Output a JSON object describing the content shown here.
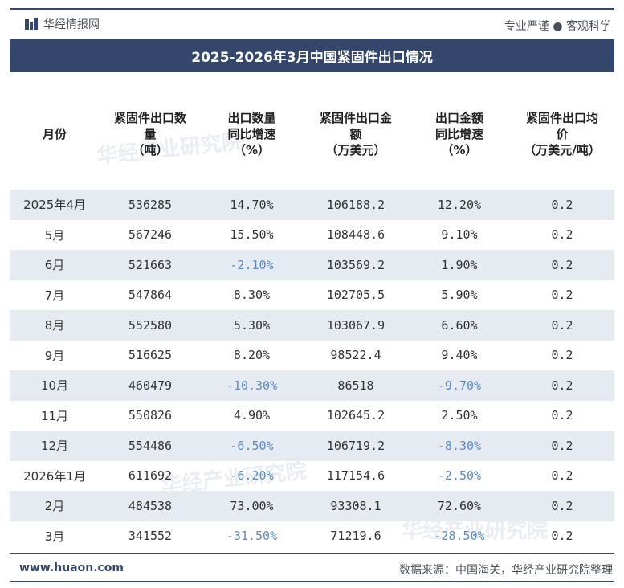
{
  "header": {
    "logo_text": "华经情报网",
    "tagline": "专业严谨 ● 客观科学",
    "brand_color": "#34466b"
  },
  "chart_data": {
    "type": "table",
    "title": "2025-2026年3月中国紧固件出口情况",
    "columns": [
      "月份",
      "紧固件出口数量（吨）",
      "出口数量同比增速（%）",
      "紧固件出口金额（万美元）",
      "出口金额同比增速（%）",
      "紧固件出口均价（万美元/吨）"
    ],
    "rows": [
      {
        "month": "2025年4月",
        "qty": "536285",
        "qty_yoy": "14.70%",
        "amount": "106188.2",
        "amount_yoy": "12.20%",
        "price": "0.2"
      },
      {
        "month": "5月",
        "qty": "567246",
        "qty_yoy": "15.50%",
        "amount": "108448.6",
        "amount_yoy": "9.10%",
        "price": "0.2"
      },
      {
        "month": "6月",
        "qty": "521663",
        "qty_yoy": "-2.10%",
        "amount": "103569.2",
        "amount_yoy": "1.90%",
        "price": "0.2"
      },
      {
        "month": "7月",
        "qty": "547864",
        "qty_yoy": "8.30%",
        "amount": "102705.5",
        "amount_yoy": "5.90%",
        "price": "0.2"
      },
      {
        "month": "8月",
        "qty": "552580",
        "qty_yoy": "5.30%",
        "amount": "103067.9",
        "amount_yoy": "6.60%",
        "price": "0.2"
      },
      {
        "month": "9月",
        "qty": "516625",
        "qty_yoy": "8.20%",
        "amount": "98522.4",
        "amount_yoy": "9.40%",
        "price": "0.2"
      },
      {
        "month": "10月",
        "qty": "460479",
        "qty_yoy": "-10.30%",
        "amount": "86518",
        "amount_yoy": "-9.70%",
        "price": "0.2"
      },
      {
        "month": "11月",
        "qty": "550826",
        "qty_yoy": "4.90%",
        "amount": "102645.2",
        "amount_yoy": "2.50%",
        "price": "0.2"
      },
      {
        "month": "12月",
        "qty": "554486",
        "qty_yoy": "-6.50%",
        "amount": "106719.2",
        "amount_yoy": "-8.30%",
        "price": "0.2"
      },
      {
        "month": "2026年1月",
        "qty": "611692",
        "qty_yoy": "-6.20%",
        "amount": "117154.6",
        "amount_yoy": "-2.50%",
        "price": "0.2"
      },
      {
        "month": "2月",
        "qty": "484538",
        "qty_yoy": "73.00%",
        "amount": "93308.1",
        "amount_yoy": "72.60%",
        "price": "0.2"
      },
      {
        "month": "3月",
        "qty": "341552",
        "qty_yoy": "-31.50%",
        "amount": "71219.6",
        "amount_yoy": "-28.50%",
        "price": "0.2"
      }
    ]
  },
  "watermark": "华经产业研究院",
  "footer": {
    "website": "www.huaon.com",
    "source": "数据来源：中国海关，华经产业研究院整理"
  },
  "colors": {
    "shade": "#e6ebf2",
    "negative": "#5b8bc4"
  }
}
